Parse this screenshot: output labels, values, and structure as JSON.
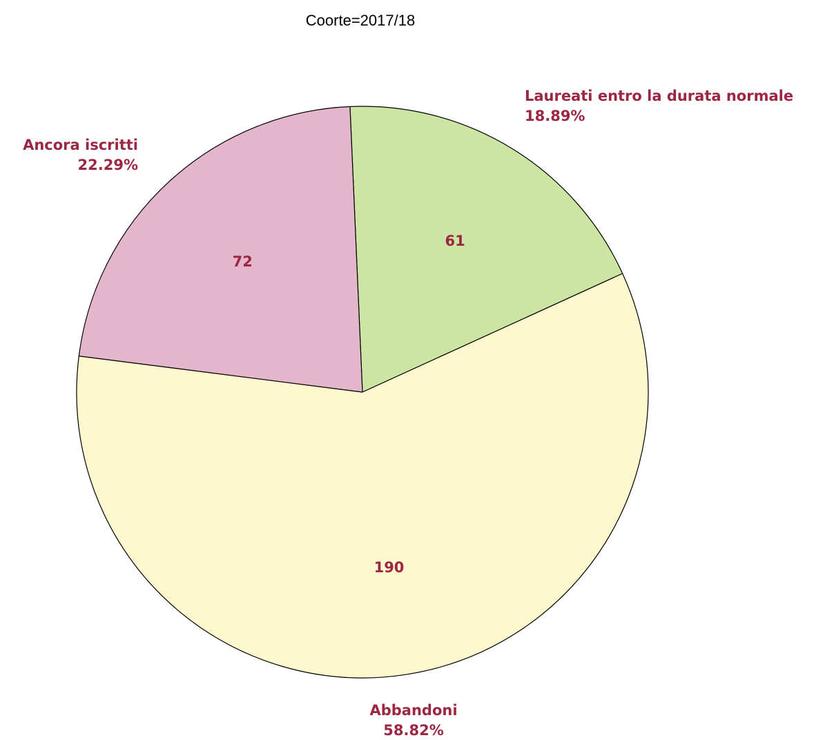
{
  "chart_data": {
    "type": "pie",
    "title": "Coorte=2017/18",
    "label_color": "#9b2743",
    "slices": [
      {
        "category": "Laureati entro la durata normale",
        "value": 61,
        "percent_label": "18.89%",
        "color": "#cce5a3"
      },
      {
        "category": "Abbandoni",
        "value": 190,
        "percent_label": "58.82%",
        "color": "#fdf8cd"
      },
      {
        "category": "Ancora iscritti",
        "value": 72,
        "percent_label": "22.29%",
        "color": "#e4b6cc"
      }
    ]
  }
}
